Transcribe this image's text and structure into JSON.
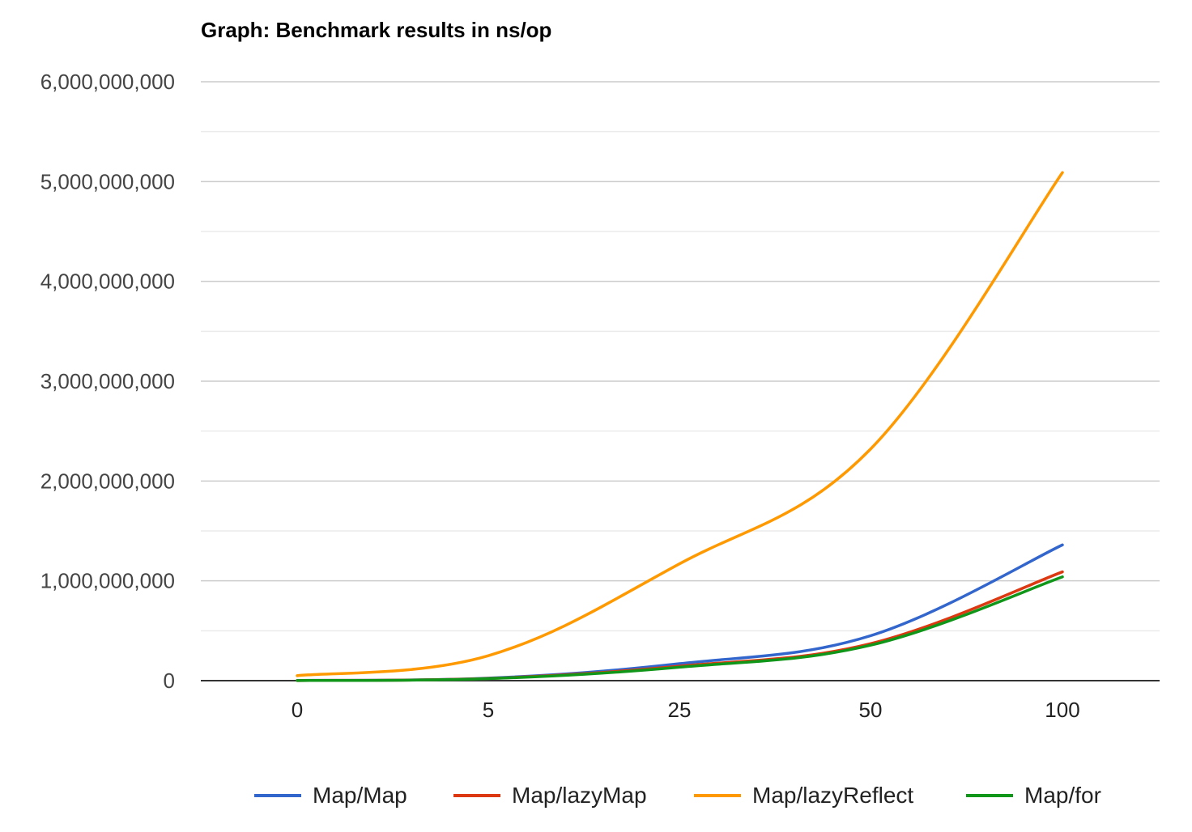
{
  "chart_data": {
    "type": "line",
    "title": "Graph: Benchmark results in ns/op",
    "xlabel": "",
    "ylabel": "",
    "categories": [
      "0",
      "5",
      "25",
      "50",
      "100"
    ],
    "ylim": [
      0,
      6000000000
    ],
    "yticks": [
      0,
      1000000000,
      2000000000,
      3000000000,
      4000000000,
      5000000000,
      6000000000
    ],
    "ytick_labels": [
      "0",
      "1,000,000,000",
      "2,000,000,000",
      "3,000,000,000",
      "4,000,000,000",
      "5,000,000,000",
      "6,000,000,000"
    ],
    "grid": true,
    "legend_position": "bottom",
    "series": [
      {
        "name": "Map/Map",
        "color": "#3366cc",
        "values": [
          2000000,
          25000000,
          170000000,
          450000000,
          1360000000
        ]
      },
      {
        "name": "Map/lazyMap",
        "color": "#dc3912",
        "values": [
          1500000,
          22000000,
          145000000,
          370000000,
          1090000000
        ]
      },
      {
        "name": "Map/lazyReflect",
        "color": "#ff9900",
        "values": [
          50000000,
          250000000,
          1170000000,
          2320000000,
          5090000000
        ]
      },
      {
        "name": "Map/for",
        "color": "#109618",
        "values": [
          1000000,
          20000000,
          135000000,
          355000000,
          1040000000
        ]
      }
    ]
  }
}
